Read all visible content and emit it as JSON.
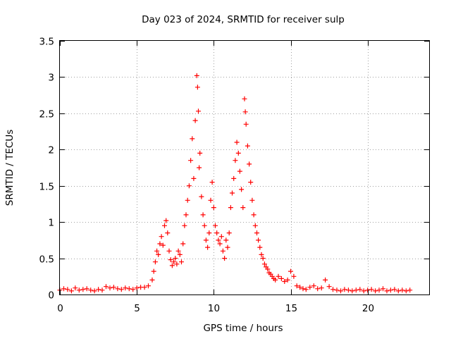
{
  "chart_data": {
    "type": "scatter",
    "title": "Day 023 of 2024, SRMTID for receiver sulp",
    "xlabel": "GPS time / hours",
    "ylabel": "SRMTID / TECUs",
    "xlim": [
      0,
      24
    ],
    "ylim": [
      0,
      3.5
    ],
    "xticks": [
      0,
      5,
      10,
      15,
      20
    ],
    "xtick_labels": [
      "0",
      "5",
      "10",
      "15",
      "20"
    ],
    "yticks": [
      0,
      0.5,
      1,
      1.5,
      2,
      2.5,
      3,
      3.5
    ],
    "ytick_labels": [
      "0",
      "0.5",
      "1",
      "1.5",
      "2",
      "2.5",
      "3",
      "3.5"
    ],
    "grid": true,
    "marker": "+",
    "series": [
      {
        "name": "SRMTID",
        "color": "#ff0000",
        "x": [
          0.0,
          0.25,
          0.5,
          0.75,
          1.0,
          1.25,
          1.5,
          1.75,
          2.0,
          2.25,
          2.5,
          2.75,
          3.0,
          3.25,
          3.5,
          3.75,
          4.0,
          4.25,
          4.5,
          4.75,
          5.0,
          5.25,
          5.5,
          5.75,
          6.0,
          6.1,
          6.2,
          6.3,
          6.4,
          6.5,
          6.6,
          6.7,
          6.8,
          6.9,
          7.0,
          7.1,
          7.2,
          7.3,
          7.4,
          7.5,
          7.6,
          7.7,
          7.8,
          7.9,
          8.0,
          8.1,
          8.2,
          8.3,
          8.4,
          8.5,
          8.6,
          8.7,
          8.8,
          8.9,
          8.95,
          9.0,
          9.05,
          9.1,
          9.2,
          9.3,
          9.4,
          9.5,
          9.6,
          9.7,
          9.8,
          9.9,
          10.0,
          10.1,
          10.2,
          10.3,
          10.4,
          10.5,
          10.6,
          10.7,
          10.8,
          10.9,
          11.0,
          11.1,
          11.2,
          11.3,
          11.4,
          11.5,
          11.6,
          11.7,
          11.8,
          11.9,
          12.0,
          12.05,
          12.1,
          12.2,
          12.3,
          12.4,
          12.5,
          12.6,
          12.7,
          12.8,
          12.9,
          13.0,
          13.1,
          13.2,
          13.3,
          13.4,
          13.5,
          13.6,
          13.7,
          13.8,
          13.9,
          14.0,
          14.2,
          14.4,
          14.6,
          14.8,
          15.0,
          15.2,
          15.4,
          15.6,
          15.8,
          16.0,
          16.25,
          16.5,
          16.75,
          17.0,
          17.25,
          17.5,
          17.75,
          18.0,
          18.25,
          18.5,
          18.75,
          19.0,
          19.25,
          19.5,
          19.75,
          20.0,
          20.25,
          20.5,
          20.75,
          21.0,
          21.25,
          21.5,
          21.75,
          22.0,
          22.25,
          22.5,
          22.75
        ],
        "y": [
          0.06,
          0.08,
          0.07,
          0.05,
          0.09,
          0.06,
          0.07,
          0.08,
          0.06,
          0.05,
          0.07,
          0.06,
          0.11,
          0.09,
          0.1,
          0.08,
          0.07,
          0.09,
          0.08,
          0.07,
          0.09,
          0.1,
          0.1,
          0.12,
          0.2,
          0.32,
          0.45,
          0.6,
          0.55,
          0.7,
          0.8,
          0.68,
          0.95,
          1.02,
          0.85,
          0.6,
          0.48,
          0.4,
          0.45,
          0.5,
          0.42,
          0.6,
          0.55,
          0.45,
          0.7,
          0.95,
          1.1,
          1.3,
          1.5,
          1.85,
          2.15,
          1.6,
          2.4,
          3.02,
          2.86,
          2.53,
          1.75,
          1.95,
          1.35,
          1.1,
          0.95,
          0.75,
          0.65,
          0.85,
          1.3,
          1.55,
          1.2,
          0.95,
          0.85,
          0.75,
          0.7,
          0.8,
          0.6,
          0.5,
          0.75,
          0.65,
          0.85,
          1.2,
          1.4,
          1.6,
          1.85,
          2.1,
          1.95,
          1.7,
          1.45,
          1.2,
          2.7,
          2.52,
          2.35,
          2.05,
          1.8,
          1.55,
          1.3,
          1.1,
          0.95,
          0.85,
          0.75,
          0.65,
          0.55,
          0.5,
          0.42,
          0.38,
          0.35,
          0.3,
          0.28,
          0.25,
          0.22,
          0.2,
          0.25,
          0.22,
          0.18,
          0.2,
          0.32,
          0.25,
          0.12,
          0.1,
          0.08,
          0.07,
          0.1,
          0.12,
          0.08,
          0.09,
          0.2,
          0.11,
          0.07,
          0.06,
          0.05,
          0.07,
          0.06,
          0.05,
          0.06,
          0.07,
          0.05,
          0.06,
          0.07,
          0.05,
          0.06,
          0.08,
          0.05,
          0.06,
          0.07,
          0.05,
          0.06,
          0.05,
          0.06
        ]
      }
    ]
  }
}
